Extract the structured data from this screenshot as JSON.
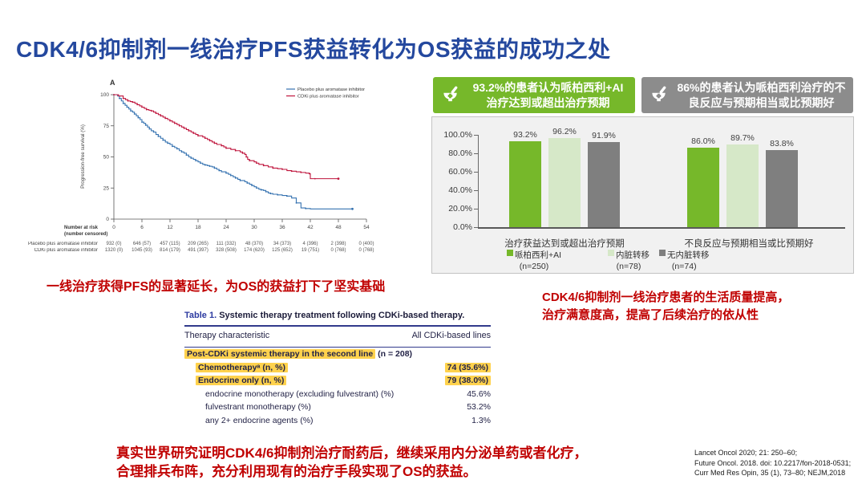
{
  "title": "CDK4/6抑制剂一线治疗PFS获益转化为OS获益的成功之处",
  "notes": {
    "left": "一线治疗获得PFS的显著延长，为OS的获益打下了坚实基础",
    "right_line1": "CDK4/6抑制剂一线治疗患者的生活质量提高，",
    "right_line2": "治疗满意度高，提高了后续治疗的依从性",
    "bottom_line1": "真实世界研究证明CDK4/6抑制剂治疗耐药后，继续采用内分泌单药或者化疗，",
    "bottom_line2": "合理排兵布阵，充分利用现有的治疗手段实现了OS的获益。"
  },
  "callouts": [
    {
      "line1": "93.2%的患者认为哌柏西利+AI",
      "line2": "治疗达到或超出治疗预期",
      "bg": "#76b82a"
    },
    {
      "line1": "86%的患者认为哌柏西利治疗的不",
      "line2": "良反应与预期相当或比预期好",
      "bg": "#8c8c8c"
    }
  ],
  "references": [
    "Lancet Oncol 2020; 21: 250–60;",
    "Future Oncol. 2018. doi: 10.2217/fon-2018-0531;",
    "Curr Med Res Opin, 35 (1), 73–80;  NEJM,2018"
  ],
  "chart_data": [
    {
      "type": "line",
      "panel_label": "A",
      "ylabel": "Progression-free survival (%)",
      "xlim": [
        0,
        54
      ],
      "ylim": [
        0,
        100
      ],
      "xticks": [
        0,
        6,
        12,
        18,
        24,
        30,
        36,
        42,
        48,
        54
      ],
      "yticks": [
        0,
        25,
        50,
        75,
        100
      ],
      "legend_position": "top-right",
      "series": [
        {
          "name": "Placebo plus aromatase inhibitor",
          "color": "#3572b0",
          "points": [
            [
              0,
              100
            ],
            [
              0.8,
              99
            ],
            [
              1.2,
              97
            ],
            [
              1.6,
              95
            ],
            [
              2,
              93
            ],
            [
              2.4,
              91.5
            ],
            [
              2.8,
              90
            ],
            [
              3.2,
              88.5
            ],
            [
              3.6,
              87
            ],
            [
              4,
              86
            ],
            [
              4.4,
              84.5
            ],
            [
              4.8,
              83
            ],
            [
              5.2,
              81.5
            ],
            [
              5.6,
              80
            ],
            [
              6,
              78
            ],
            [
              6.4,
              77
            ],
            [
              6.8,
              75.5
            ],
            [
              7.2,
              74
            ],
            [
              7.6,
              72.5
            ],
            [
              8,
              71
            ],
            [
              8.5,
              70
            ],
            [
              9,
              68
            ],
            [
              9.5,
              66.5
            ],
            [
              10,
              65
            ],
            [
              10.5,
              63.5
            ],
            [
              11,
              62
            ],
            [
              11.5,
              61
            ],
            [
              12,
              60
            ],
            [
              12.5,
              58.5
            ],
            [
              13,
              57.5
            ],
            [
              13.5,
              56.5
            ],
            [
              14,
              55
            ],
            [
              14.5,
              54
            ],
            [
              15,
              53
            ],
            [
              15.5,
              51.5
            ],
            [
              16,
              50
            ],
            [
              16.5,
              49
            ],
            [
              17,
              48
            ],
            [
              17.5,
              47
            ],
            [
              18,
              46
            ],
            [
              18.5,
              45
            ],
            [
              19,
              44
            ],
            [
              19.5,
              43.5
            ],
            [
              20,
              43
            ],
            [
              20.5,
              42.5
            ],
            [
              21,
              42
            ],
            [
              21.5,
              41
            ],
            [
              22,
              40
            ],
            [
              22.5,
              39
            ],
            [
              23,
              38
            ],
            [
              24,
              37
            ],
            [
              24.5,
              36
            ],
            [
              25,
              35
            ],
            [
              25.5,
              34
            ],
            [
              26,
              33
            ],
            [
              26.5,
              32
            ],
            [
              27,
              31
            ],
            [
              28,
              30
            ],
            [
              28.5,
              29
            ],
            [
              29,
              28
            ],
            [
              29.5,
              27
            ],
            [
              30,
              26
            ],
            [
              30.5,
              25
            ],
            [
              31,
              24
            ],
            [
              31.5,
              23.5
            ],
            [
              32,
              23
            ],
            [
              32.5,
              22
            ],
            [
              33,
              21
            ],
            [
              33.5,
              20.5
            ],
            [
              34,
              20
            ],
            [
              35,
              19.5
            ],
            [
              36,
              19
            ],
            [
              37,
              18.5
            ],
            [
              38,
              17
            ],
            [
              39,
              13
            ],
            [
              40,
              9
            ],
            [
              41,
              8.5
            ],
            [
              42,
              8.2
            ],
            [
              51,
              8.2
            ]
          ]
        },
        {
          "name": "CDKi plus aromatase inhibitor",
          "color": "#bf143c",
          "points": [
            [
              0,
              100
            ],
            [
              1,
              99
            ],
            [
              2,
              97
            ],
            [
              2.5,
              96
            ],
            [
              3,
              95
            ],
            [
              3.5,
              94.5
            ],
            [
              4,
              94
            ],
            [
              4.5,
              93
            ],
            [
              5,
              92
            ],
            [
              5.5,
              91
            ],
            [
              6,
              90
            ],
            [
              6.5,
              89
            ],
            [
              7,
              88
            ],
            [
              7.5,
              87.5
            ],
            [
              8,
              87
            ],
            [
              8.5,
              86
            ],
            [
              9,
              85
            ],
            [
              9.5,
              84
            ],
            [
              10,
              83
            ],
            [
              10.5,
              82
            ],
            [
              11,
              81
            ],
            [
              11.5,
              80
            ],
            [
              12,
              79
            ],
            [
              12.5,
              78
            ],
            [
              13,
              77
            ],
            [
              13.5,
              76
            ],
            [
              14,
              75
            ],
            [
              14.5,
              74
            ],
            [
              15,
              73
            ],
            [
              15.5,
              72
            ],
            [
              16,
              71
            ],
            [
              16.5,
              70
            ],
            [
              17,
              69
            ],
            [
              17.5,
              68
            ],
            [
              18,
              67
            ],
            [
              19,
              66
            ],
            [
              19.5,
              65
            ],
            [
              20,
              64
            ],
            [
              20.5,
              63
            ],
            [
              21,
              62
            ],
            [
              21.5,
              61
            ],
            [
              22,
              60
            ],
            [
              23,
              59
            ],
            [
              23.5,
              58
            ],
            [
              24,
              57
            ],
            [
              25,
              56
            ],
            [
              26,
              55
            ],
            [
              27,
              54
            ],
            [
              27.5,
              53
            ],
            [
              28,
              52
            ],
            [
              28.3,
              50
            ],
            [
              28.6,
              48
            ],
            [
              29,
              47
            ],
            [
              30,
              46
            ],
            [
              30.5,
              45
            ],
            [
              31,
              44
            ],
            [
              32,
              43
            ],
            [
              33,
              42
            ],
            [
              34,
              41
            ],
            [
              35,
              40.5
            ],
            [
              36,
              40
            ],
            [
              37,
              39
            ],
            [
              38,
              38.5
            ],
            [
              39,
              38
            ],
            [
              40,
              37.5
            ],
            [
              41,
              37
            ],
            [
              41.8,
              36.5
            ],
            [
              42,
              32.5
            ],
            [
              43,
              32.5
            ],
            [
              48,
              32.5
            ]
          ]
        }
      ],
      "number_at_risk": {
        "title": "Number at risk",
        "subtitle": "(number censored)",
        "rows": [
          {
            "label": "Placebo plus aromatase inhibitor",
            "values": [
              "932 (0)",
              "646 (57)",
              "457 (115)",
              "209 (265)",
              "111 (332)",
              "48 (370)",
              "34 (373)",
              "4 (396)",
              "2 (398)",
              "0 (400)"
            ]
          },
          {
            "label": "CDKi plus aromatase inhibitor",
            "values": [
              "1320 (0)",
              "1045 (93)",
              "814 (179)",
              "491 (397)",
              "328 (508)",
              "174 (620)",
              "125 (652)",
              "19 (751)",
              "0 (768)",
              "0 (768)"
            ]
          }
        ]
      }
    },
    {
      "type": "bar",
      "groups": [
        "治疗获益达到或超出治疗预期",
        "不良反应与预期相当或比预期好"
      ],
      "series": [
        {
          "name": "哌柏西利+AI",
          "n_label": "(n=250)",
          "color": "#76b82a",
          "values": [
            93.2,
            86.0
          ]
        },
        {
          "name": "内脏转移",
          "n_label": "(n=78)",
          "color": "#d6e8c8",
          "values": [
            96.2,
            89.7
          ]
        },
        {
          "name": "无内脏转移",
          "n_label": "(n=74)",
          "color": "#7f7f7f",
          "values": [
            91.9,
            83.8
          ]
        }
      ],
      "yticks": [
        0,
        20,
        40,
        60,
        80,
        100
      ],
      "ylim": [
        0,
        100
      ],
      "grid": false,
      "legend_position": "bottom"
    },
    {
      "type": "table",
      "title_label": "Table 1.",
      "title": "Systemic therapy treatment following CDKi-based therapy.",
      "columns": [
        "Therapy characteristic",
        "All CDKi-based lines"
      ],
      "highlight_color": "#ffd24d",
      "rows": [
        {
          "label": "Post-CDKi systemic therapy in the second line",
          "label_rest": " (n = 208)",
          "value": "",
          "indent": 0,
          "hl_label": true,
          "hl_value": false,
          "bold": true
        },
        {
          "label": "Chemotherapyᵃ (n, %)",
          "label_rest": "",
          "value": "74 (35.6%)",
          "indent": 1,
          "hl_label": true,
          "hl_value": true,
          "bold": true
        },
        {
          "label": "Endocrine only (n, %)",
          "label_rest": "",
          "value": "79 (38.0%)",
          "indent": 1,
          "hl_label": true,
          "hl_value": true,
          "bold": true
        },
        {
          "label": "endocrine monotherapy (excluding fulvestrant) (%)",
          "label_rest": "",
          "value": "45.6%",
          "indent": 2,
          "hl_label": false,
          "hl_value": false,
          "bold": false
        },
        {
          "label": "fulvestrant monotherapy (%)",
          "label_rest": "",
          "value": "53.2%",
          "indent": 2,
          "hl_label": false,
          "hl_value": false,
          "bold": false
        },
        {
          "label": "any 2+ endocrine agents (%)",
          "label_rest": "",
          "value": "1.3%",
          "indent": 2,
          "hl_label": false,
          "hl_value": false,
          "bold": false
        }
      ]
    }
  ]
}
